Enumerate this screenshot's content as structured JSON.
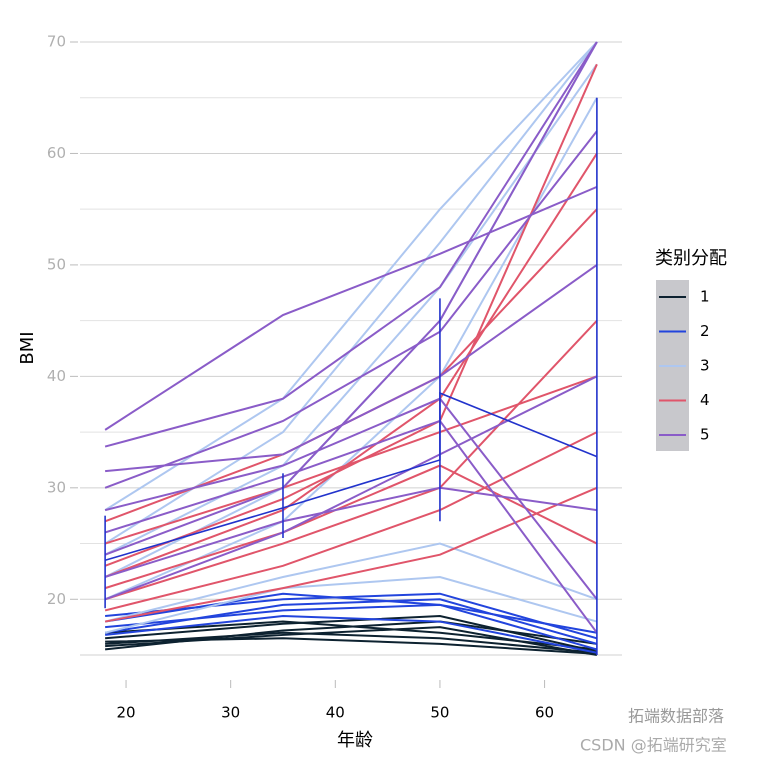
{
  "chart_data": {
    "type": "spaghetti",
    "x_label": "年龄",
    "y_label": "BMI",
    "legend_title": "类别分配",
    "x": [
      18,
      35,
      50,
      65
    ],
    "xlim": [
      15.6,
      67.4
    ],
    "ylim": [
      15,
      70
    ],
    "xticks": [
      20,
      30,
      40,
      50,
      60
    ],
    "yticks": [
      20,
      30,
      40,
      50,
      60,
      70
    ],
    "yminorticks": [
      25,
      35,
      45,
      55,
      65
    ],
    "grid": true,
    "groups": [
      {
        "name": "1",
        "color": "#0d2230",
        "lines": [
          [
            16,
            17,
            16.5,
            15.2
          ],
          [
            15.8,
            16.8,
            17.5,
            15
          ],
          [
            16.5,
            17.8,
            18.5,
            15.3
          ],
          [
            17,
            18,
            17,
            15.5
          ],
          [
            16.2,
            16.5,
            16,
            15.1
          ],
          [
            15.5,
            17.2,
            18,
            16
          ]
        ]
      },
      {
        "name": "2",
        "color": "#2244dd",
        "lines": [
          [
            17,
            19.5,
            20,
            16
          ],
          [
            18,
            20.5,
            19.5,
            15.5
          ],
          [
            17.5,
            19,
            19.5,
            17
          ],
          [
            16.8,
            18.5,
            18,
            15.2
          ],
          [
            18.5,
            20,
            20.5,
            16.5
          ]
        ]
      },
      {
        "name": "3",
        "color": "#aec7f0",
        "lines": [
          [
            22,
            30,
            45,
            70
          ],
          [
            25,
            35,
            52,
            70
          ],
          [
            20,
            27,
            40,
            65
          ],
          [
            18,
            22,
            25,
            20
          ],
          [
            28,
            38,
            55,
            70
          ],
          [
            24,
            32,
            48,
            68
          ],
          [
            17,
            21,
            22,
            18
          ]
        ]
      },
      {
        "name": "4",
        "color": "#e0556a",
        "lines": [
          [
            22,
            28,
            38,
            60
          ],
          [
            20,
            25,
            30,
            45
          ],
          [
            25,
            30,
            35,
            40
          ],
          [
            19,
            23,
            28,
            35
          ],
          [
            27,
            33,
            40,
            55
          ],
          [
            21,
            26,
            32,
            25
          ],
          [
            23,
            29,
            36,
            68
          ],
          [
            18,
            21,
            24,
            30
          ]
        ]
      },
      {
        "name": "5",
        "color": "#8a5cc8",
        "lines": [
          [
            35.2,
            45.5,
            51,
            57
          ],
          [
            33.7,
            38,
            48,
            70
          ],
          [
            31.5,
            33,
            40,
            50
          ],
          [
            28,
            32,
            38,
            20
          ],
          [
            24,
            30,
            45,
            70
          ],
          [
            20,
            26,
            33,
            40
          ],
          [
            26,
            31,
            36,
            17
          ],
          [
            30,
            36,
            44,
            62
          ],
          [
            22,
            27,
            30,
            28
          ]
        ]
      }
    ],
    "mean_line": {
      "color": "#2233cc",
      "x": [
        18,
        35,
        50,
        50,
        65
      ],
      "values": [
        23.5,
        28.2,
        32.5,
        38.5,
        32.8
      ]
    },
    "error_bars": [
      {
        "x": 18,
        "low": 19.2,
        "high": 27.5
      },
      {
        "x": 35,
        "low": 25.5,
        "high": 31.3
      },
      {
        "x": 50,
        "low": 27,
        "high": 47
      },
      {
        "x": 65,
        "low": 15,
        "high": 65
      }
    ],
    "watermarks": [
      "拓端数据部落",
      "CSDN @拓端研究室"
    ]
  }
}
